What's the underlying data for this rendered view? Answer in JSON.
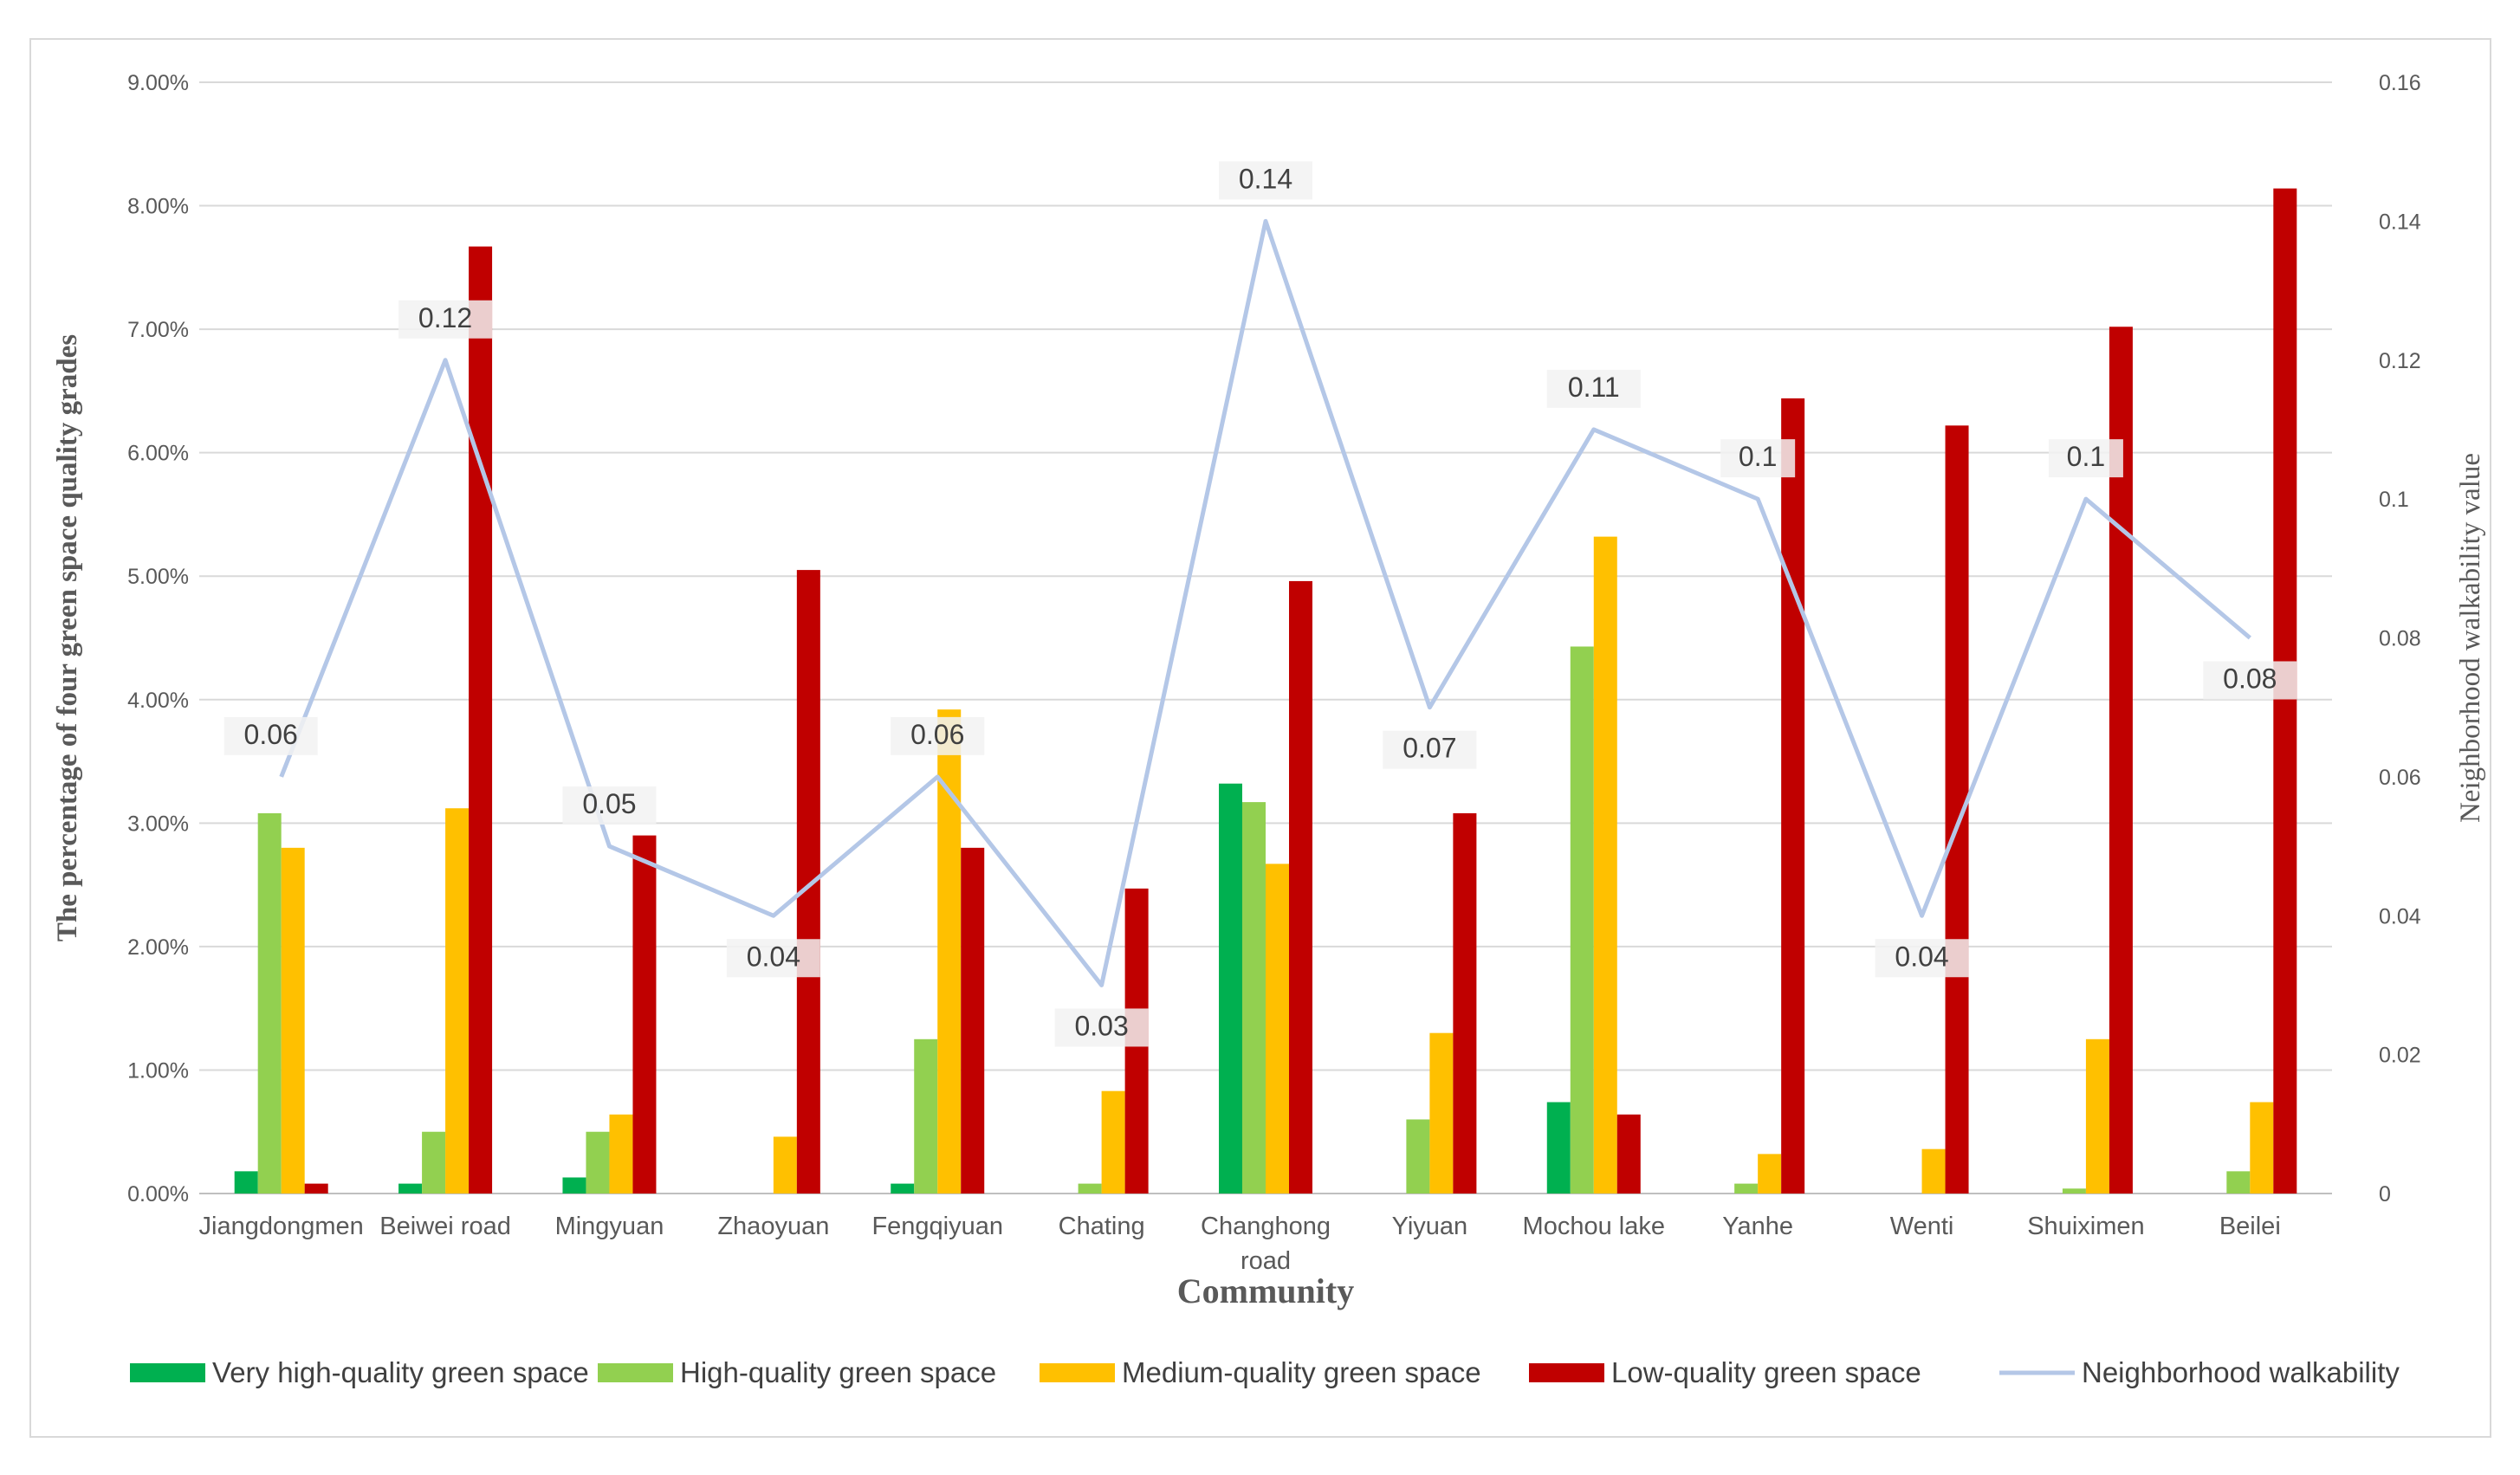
{
  "chart_data": {
    "type": "bar",
    "combo": "clustered bars with line on secondary axis",
    "xlabel": "Community",
    "ylabel": "The percentage of four green space quality grades",
    "y2label": "Neighborhood walkability value",
    "ylim": [
      0,
      9
    ],
    "y_ticks": [
      "0.00%",
      "1.00%",
      "2.00%",
      "3.00%",
      "4.00%",
      "5.00%",
      "6.00%",
      "7.00%",
      "8.00%",
      "9.00%"
    ],
    "y2lim": [
      0,
      0.16
    ],
    "y2_ticks": [
      "0",
      "0.02",
      "0.04",
      "0.06",
      "0.08",
      "0.1",
      "0.12",
      "0.14",
      "0.16"
    ],
    "grid": true,
    "legend_position": "bottom",
    "categories": [
      "Jiangdongmen",
      "Beiwei road",
      "Mingyuan",
      "Zhaoyuan",
      "Fengqiyuan",
      "Chating",
      "Changhong road",
      "Yiyuan",
      "Mochou lake",
      "Yanhe",
      "Wenti",
      "Shuiximen",
      "Beilei"
    ],
    "series": [
      {
        "name": "Very high-quality green space",
        "color": "#00b050",
        "values": [
          0.18,
          0.08,
          0.13,
          0,
          0.08,
          0,
          3.32,
          0,
          0.74,
          0,
          0,
          0,
          0
        ]
      },
      {
        "name": "High-quality green space",
        "color": "#92d050",
        "values": [
          3.08,
          0.5,
          0.5,
          0,
          1.25,
          0.08,
          3.17,
          0.6,
          4.43,
          0.08,
          0,
          0.04,
          0.18
        ]
      },
      {
        "name": "Medium-quality green space",
        "color": "#ffc000",
        "values": [
          2.8,
          3.12,
          0.64,
          0.46,
          3.92,
          0.83,
          2.67,
          1.3,
          5.32,
          0.32,
          0.36,
          1.25,
          0.74
        ]
      },
      {
        "name": "Low-quality green space",
        "color": "#c00000",
        "values": [
          0.08,
          7.67,
          2.9,
          5.05,
          2.8,
          2.47,
          4.96,
          3.08,
          0.64,
          6.44,
          6.22,
          7.02,
          8.14
        ]
      }
    ],
    "line_series": {
      "name": "Neighborhood walkability",
      "color": "#b4c7e7",
      "axis": "secondary",
      "values": [
        0.06,
        0.12,
        0.05,
        0.04,
        0.06,
        0.03,
        0.14,
        0.07,
        0.11,
        0.1,
        0.04,
        0.1,
        0.08
      ],
      "labels": [
        "0.06",
        "0.12",
        "0.05",
        "0.04",
        "0.06",
        "0.03",
        "0.14",
        "0.07",
        "0.11",
        "0.1",
        "0.04",
        "0.1",
        "0.08"
      ]
    }
  }
}
